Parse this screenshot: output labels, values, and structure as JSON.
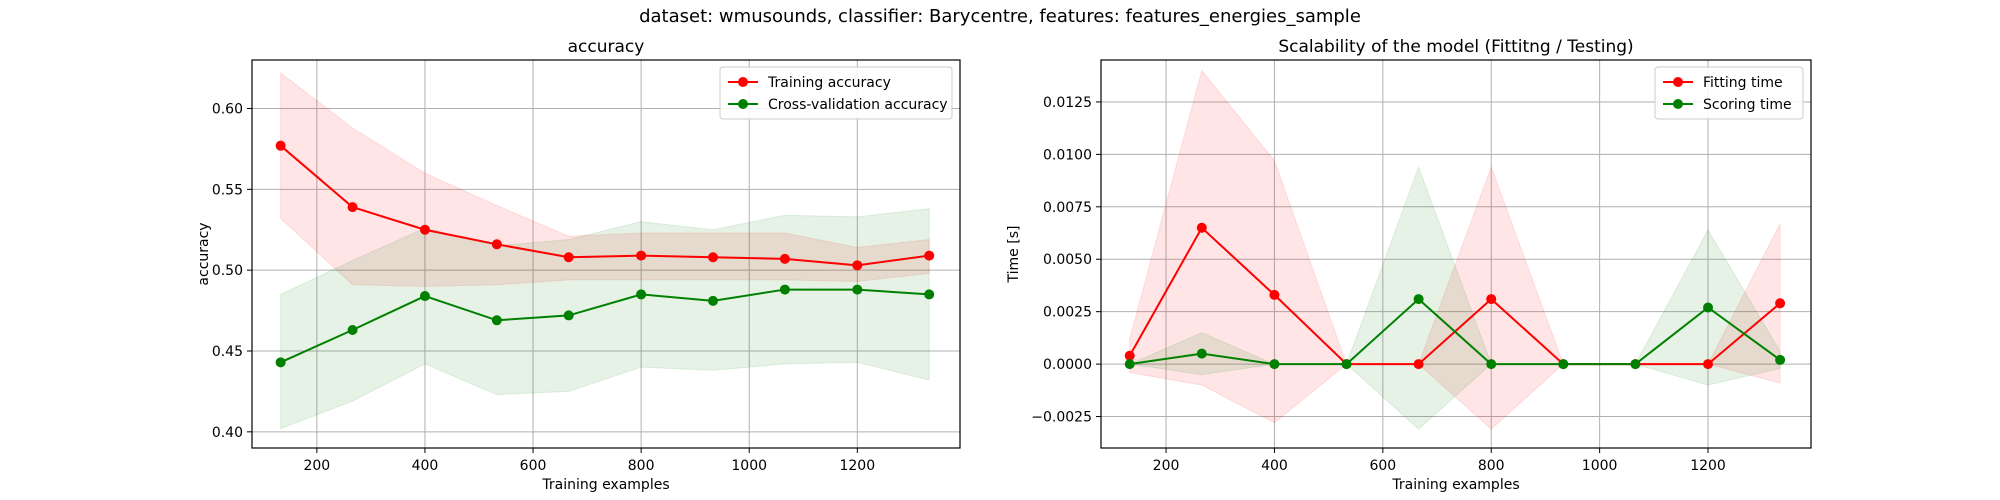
{
  "figure": {
    "suptitle": "dataset: wmusounds, classifier: Barycentre, features: features_energies_sample"
  },
  "chart_data": [
    {
      "type": "line",
      "title": "accuracy",
      "xlabel": "Training examples",
      "ylabel": "accuracy",
      "xlim": [
        80,
        1390
      ],
      "ylim": [
        0.39,
        0.63
      ],
      "xticks": [
        200,
        400,
        600,
        800,
        1000,
        1200
      ],
      "yticks": [
        0.4,
        0.45,
        0.5,
        0.55,
        0.6
      ],
      "grid": true,
      "legend": "top-right",
      "x": [
        133,
        266,
        400,
        533,
        666,
        800,
        933,
        1066,
        1200,
        1333
      ],
      "series": [
        {
          "name": "Training accuracy",
          "color": "#ff0000",
          "values": [
            0.577,
            0.539,
            0.525,
            0.516,
            0.508,
            0.509,
            0.508,
            0.507,
            0.503,
            0.509
          ],
          "band_low": [
            0.532,
            0.491,
            0.49,
            0.491,
            0.494,
            0.494,
            0.494,
            0.494,
            0.493,
            0.498
          ],
          "band_high": [
            0.622,
            0.588,
            0.56,
            0.54,
            0.521,
            0.523,
            0.523,
            0.523,
            0.514,
            0.519
          ]
        },
        {
          "name": "Cross-validation accuracy",
          "color": "#008000",
          "values": [
            0.443,
            0.463,
            0.484,
            0.469,
            0.472,
            0.485,
            0.481,
            0.488,
            0.488,
            0.485
          ],
          "band_low": [
            0.402,
            0.419,
            0.442,
            0.423,
            0.425,
            0.44,
            0.438,
            0.442,
            0.443,
            0.432
          ],
          "band_high": [
            0.485,
            0.506,
            0.526,
            0.515,
            0.519,
            0.53,
            0.525,
            0.534,
            0.533,
            0.538
          ]
        }
      ]
    },
    {
      "type": "line",
      "title": "Scalability of the model (Fittitng / Testing)",
      "xlabel": "Training examples",
      "ylabel": "Time [s]",
      "xlim": [
        80,
        1390
      ],
      "ylim": [
        -0.004,
        0.0145
      ],
      "xticks": [
        200,
        400,
        600,
        800,
        1000,
        1200
      ],
      "yticks": [
        -0.0025,
        0.0,
        0.0025,
        0.005,
        0.0075,
        0.01,
        0.0125
      ],
      "ytick_labels": [
        "−0.0025",
        "0.0000",
        "0.0025",
        "0.0050",
        "0.0075",
        "0.0100",
        "0.0125"
      ],
      "grid": true,
      "legend": "top-right",
      "x": [
        133,
        266,
        400,
        533,
        666,
        800,
        933,
        1066,
        1200,
        1333
      ],
      "series": [
        {
          "name": "Fitting time",
          "color": "#ff0000",
          "values": [
            0.0004,
            0.0065,
            0.0033,
            0.0,
            0.0,
            0.0031,
            0.0,
            0.0,
            0.0,
            0.0029
          ],
          "band_low": [
            -0.0004,
            -0.001,
            -0.0028,
            0.0,
            0.0,
            -0.0031,
            0.0,
            0.0,
            0.0,
            -0.0009
          ],
          "band_high": [
            0.0012,
            0.014,
            0.0097,
            0.0,
            0.0,
            0.0094,
            0.0,
            0.0,
            0.0,
            0.0067
          ]
        },
        {
          "name": "Scoring time",
          "color": "#008000",
          "values": [
            0.0,
            0.0005,
            0.0,
            0.0,
            0.0031,
            0.0,
            0.0,
            0.0,
            0.0027,
            0.0002
          ],
          "band_low": [
            0.0,
            -0.0005,
            0.0,
            0.0,
            -0.0031,
            0.0,
            0.0,
            0.0,
            -0.001,
            -0.0002
          ],
          "band_high": [
            0.0,
            0.0015,
            0.0,
            0.0,
            0.0094,
            0.0,
            0.0,
            0.0,
            0.0064,
            0.0006
          ]
        }
      ]
    }
  ]
}
